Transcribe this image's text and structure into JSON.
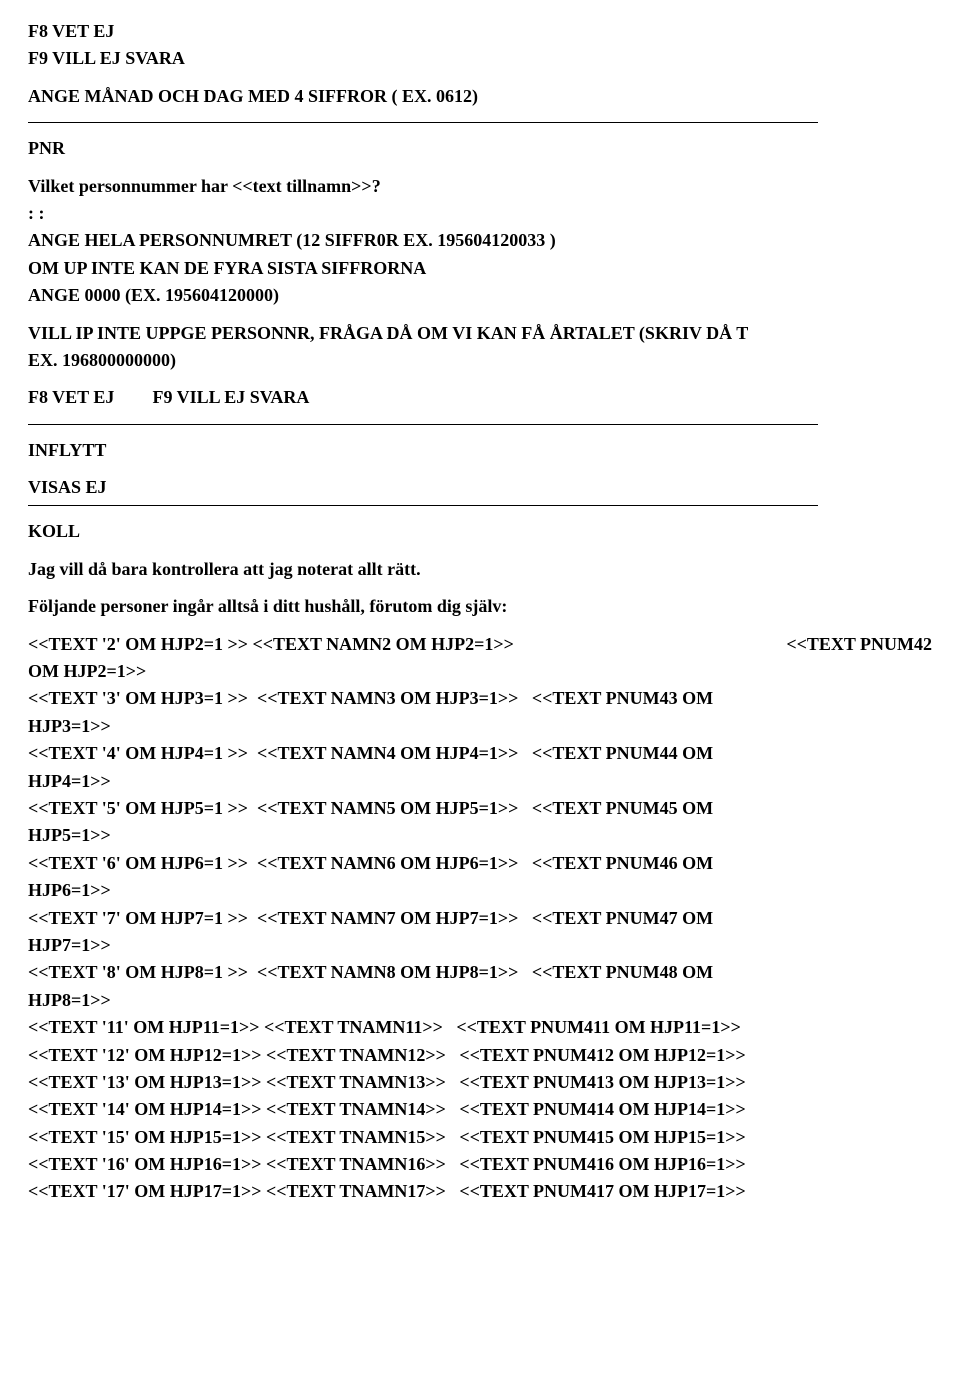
{
  "header": {
    "line1": "F8 VET EJ",
    "line2": "F9 VILL EJ SVARA",
    "instruction": "ANGE MÅNAD OCH DAG  MED 4 SIFFROR ( EX. 0612)"
  },
  "pnr": {
    "title": "PNR",
    "q": "Vilket personnummer har <<text tillnamn>>?",
    "colons": ": :",
    "instr1": "ANGE HELA PERSONNUMRET (12 SIFFR0R EX. 195604120033 )",
    "instr2": "OM UP INTE KAN DE FYRA SISTA SIFFRORNA",
    "instr3": "ANGE 0000  (EX. 195604120000)",
    "instr4": "VILL IP INTE UPPGE PERSONNR, FRÅGA DÅ OM VI KAN FÅ  ÅRTALET (SKRIV DÅ T",
    "instr5": "EX. 196800000000)",
    "f8": "F8 VET EJ",
    "f9": "F9 VILL EJ SVARA"
  },
  "inflytt": {
    "title": "INFLYTT",
    "sub": "VISAS EJ"
  },
  "koll": {
    "title": "KOLL",
    "q1": "Jag vill då bara kontrollera att jag noterat allt rätt.",
    "q2": "Följande personer ingår alltså i ditt hushåll, förutom dig själv:",
    "rows2to8": [
      {
        "a": "<<TEXT '2' OM HJP2=1 >>  <<TEXT NAMN2 OM HJP2=1>>",
        "b": "<<TEXT PNUM42",
        "c": "OM HJP2=1>>"
      },
      {
        "a": "<<TEXT '3' OM HJP3=1 >>  <<TEXT NAMN3 OM HJP3=1>>   <<TEXT PNUM43 OM",
        "c": "HJP3=1>>"
      },
      {
        "a": "<<TEXT '4' OM HJP4=1 >>  <<TEXT NAMN4 OM HJP4=1>>   <<TEXT PNUM44 OM",
        "c": "HJP4=1>>"
      },
      {
        "a": "<<TEXT '5' OM HJP5=1 >>  <<TEXT NAMN5 OM HJP5=1>>   <<TEXT PNUM45 OM",
        "c": "HJP5=1>>"
      },
      {
        "a": "<<TEXT '6' OM HJP6=1 >>  <<TEXT NAMN6 OM HJP6=1>>   <<TEXT PNUM46 OM",
        "c": "HJP6=1>>"
      },
      {
        "a": "<<TEXT '7' OM HJP7=1 >>  <<TEXT NAMN7 OM HJP7=1>>   <<TEXT PNUM47 OM",
        "c": "HJP7=1>>"
      },
      {
        "a": "<<TEXT '8' OM HJP8=1 >>  <<TEXT NAMN8 OM HJP8=1>>   <<TEXT PNUM48 OM",
        "c": "HJP8=1>>"
      }
    ],
    "rows11to17": [
      "<<TEXT '11' OM HJP11=1>> <<TEXT TNAMN11>>   <<TEXT PNUM411 OM HJP11=1>>",
      "<<TEXT '12' OM HJP12=1>> <<TEXT TNAMN12>>   <<TEXT PNUM412 OM HJP12=1>>",
      "<<TEXT '13' OM HJP13=1>> <<TEXT TNAMN13>>   <<TEXT PNUM413 OM HJP13=1>>",
      "<<TEXT '14' OM HJP14=1>> <<TEXT TNAMN14>>   <<TEXT PNUM414 OM HJP14=1>>",
      "<<TEXT '15' OM HJP15=1>> <<TEXT TNAMN15>>   <<TEXT PNUM415 OM HJP15=1>>",
      "<<TEXT '16' OM HJP16=1>> <<TEXT TNAMN16>>   <<TEXT PNUM416 OM HJP16=1>>",
      "<<TEXT '17' OM HJP17=1>> <<TEXT TNAMN17>>   <<TEXT PNUM417 OM HJP17=1>>"
    ]
  }
}
